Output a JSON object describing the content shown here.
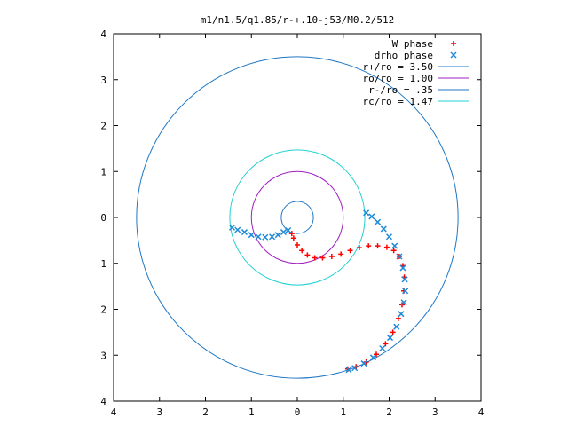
{
  "chart_data": {
    "type": "scatter",
    "title": "m1/n1.5/q1.85/r-+.10-j53/M0.2/512",
    "xlabel": "",
    "ylabel": "",
    "xlim": [
      -4,
      4
    ],
    "ylim": [
      -4,
      4
    ],
    "x_ticks": [
      -4,
      -3,
      -2,
      -1,
      0,
      1,
      2,
      3,
      4
    ],
    "y_ticks": [
      -4,
      -3,
      -2,
      -1,
      0,
      1,
      2,
      3,
      4
    ],
    "x_tick_labels": [
      "4",
      "3",
      "2",
      "1",
      "0",
      "1",
      "2",
      "3",
      "4"
    ],
    "y_tick_labels": [
      "4",
      "3",
      "2",
      "1",
      "0",
      "1",
      "2",
      "3",
      "4"
    ],
    "grid": false,
    "legend_position": "top-right",
    "circles": [
      {
        "name": "r+/ro = 3.50",
        "radius": 3.5,
        "color": "#1f77c4"
      },
      {
        "name": "ro/ro = 1.00",
        "radius": 1.0,
        "color": "#a020c0"
      },
      {
        "name": "r-/ro = .35",
        "radius": 0.35,
        "color": "#1f77c4"
      },
      {
        "name": "rc/ro = 1.47",
        "radius": 1.47,
        "color": "#20d0d0"
      }
    ],
    "series": [
      {
        "name": "W phase",
        "marker": "+",
        "color": "#ff0000",
        "points": [
          [
            -0.12,
            -0.35
          ],
          [
            -0.08,
            -0.45
          ],
          [
            0.0,
            -0.6
          ],
          [
            0.1,
            -0.72
          ],
          [
            0.22,
            -0.82
          ],
          [
            0.38,
            -0.88
          ],
          [
            0.55,
            -0.88
          ],
          [
            0.75,
            -0.85
          ],
          [
            0.95,
            -0.8
          ],
          [
            1.15,
            -0.72
          ],
          [
            1.35,
            -0.66
          ],
          [
            1.55,
            -0.62
          ],
          [
            1.75,
            -0.62
          ],
          [
            1.95,
            -0.65
          ],
          [
            2.1,
            -0.72
          ],
          [
            2.22,
            -0.85
          ],
          [
            2.3,
            -1.05
          ],
          [
            2.33,
            -1.3
          ],
          [
            2.32,
            -1.6
          ],
          [
            2.28,
            -1.9
          ],
          [
            2.2,
            -2.2
          ],
          [
            2.08,
            -2.5
          ],
          [
            1.92,
            -2.75
          ],
          [
            1.72,
            -2.98
          ],
          [
            1.5,
            -3.15
          ],
          [
            1.28,
            -3.25
          ],
          [
            1.1,
            -3.3
          ]
        ]
      },
      {
        "name": "drho phase",
        "marker": "x",
        "color": "#1e8ad8",
        "points": [
          [
            -1.42,
            -0.22
          ],
          [
            -1.3,
            -0.27
          ],
          [
            -1.15,
            -0.32
          ],
          [
            -1.0,
            -0.38
          ],
          [
            -0.85,
            -0.42
          ],
          [
            -0.7,
            -0.43
          ],
          [
            -0.55,
            -0.42
          ],
          [
            -0.42,
            -0.38
          ],
          [
            -0.3,
            -0.32
          ],
          [
            -0.2,
            -0.28
          ],
          [
            1.5,
            0.1
          ],
          [
            1.62,
            0.02
          ],
          [
            1.75,
            -0.1
          ],
          [
            1.88,
            -0.25
          ],
          [
            2.0,
            -0.42
          ],
          [
            2.12,
            -0.62
          ],
          [
            2.22,
            -0.85
          ],
          [
            2.3,
            -1.1
          ],
          [
            2.34,
            -1.35
          ],
          [
            2.35,
            -1.6
          ],
          [
            2.32,
            -1.85
          ],
          [
            2.26,
            -2.1
          ],
          [
            2.16,
            -2.38
          ],
          [
            2.02,
            -2.62
          ],
          [
            1.85,
            -2.85
          ],
          [
            1.65,
            -3.05
          ],
          [
            1.45,
            -3.18
          ],
          [
            1.25,
            -3.28
          ],
          [
            1.12,
            -3.32
          ]
        ]
      }
    ]
  }
}
